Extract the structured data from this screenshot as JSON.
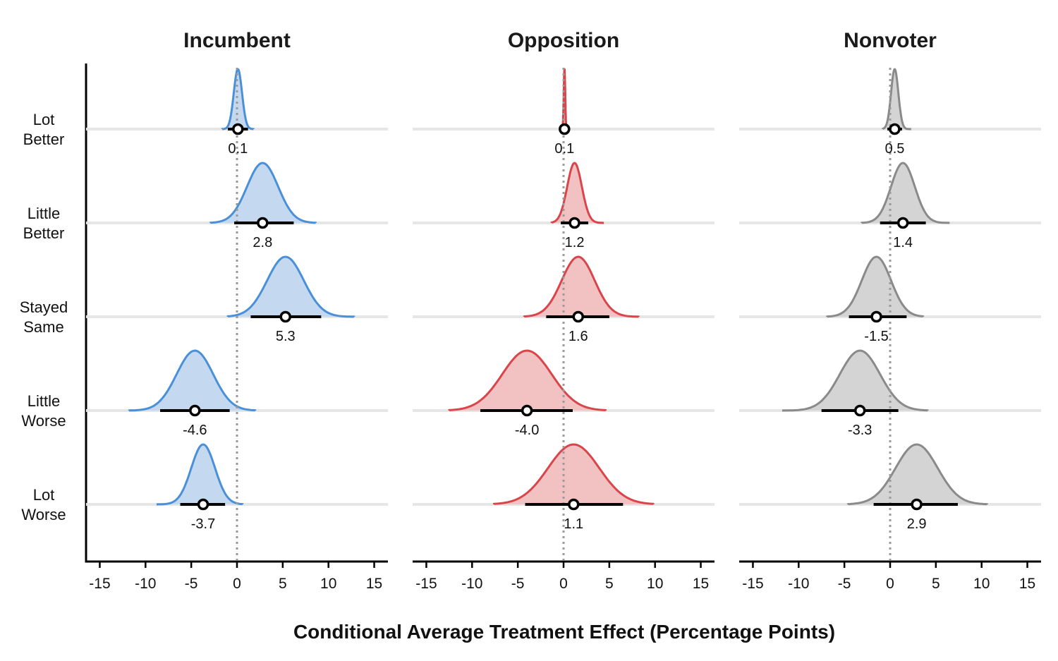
{
  "chart_data": {
    "type": "ridgeline",
    "xlabel": "Conditional Average Treatment Effect (Percentage Points)",
    "xlim": [
      -16.5,
      16.5
    ],
    "xticks": [
      -15,
      -10,
      -5,
      0,
      5,
      10,
      15
    ],
    "xtick_labels": [
      "-15",
      "-10",
      "-5",
      "0",
      "5",
      "10",
      "15"
    ],
    "reference_line": 0,
    "categories": [
      {
        "lines": [
          "Lot",
          "Better"
        ]
      },
      {
        "lines": [
          "Little",
          "Better"
        ]
      },
      {
        "lines": [
          "Stayed",
          "Same"
        ]
      },
      {
        "lines": [
          "Little",
          "Worse"
        ]
      },
      {
        "lines": [
          "Lot",
          "Worse"
        ]
      }
    ],
    "panels": [
      {
        "title": "Incumbent",
        "color": "#4a90d9",
        "fill": "#c4d9f0",
        "rows": [
          {
            "estimate": 0.1,
            "label": "0.1",
            "ci": [
              -1.0,
              1.2
            ],
            "sd": 0.45,
            "range": [
              -1.6,
              1.8
            ]
          },
          {
            "estimate": 2.8,
            "label": "2.8",
            "ci": [
              -0.3,
              6.2
            ],
            "sd": 1.7,
            "range": [
              -2.9,
              8.6
            ]
          },
          {
            "estimate": 5.3,
            "label": "5.3",
            "ci": [
              1.5,
              9.2
            ],
            "sd": 2.0,
            "range": [
              -1.0,
              12.8
            ]
          },
          {
            "estimate": -4.6,
            "label": "-4.6",
            "ci": [
              -8.4,
              -0.8
            ],
            "sd": 2.0,
            "range": [
              -11.8,
              2.0
            ]
          },
          {
            "estimate": -3.7,
            "label": "-3.7",
            "ci": [
              -6.2,
              -1.3
            ],
            "sd": 1.3,
            "range": [
              -8.8,
              0.6
            ]
          }
        ]
      },
      {
        "title": "Opposition",
        "color": "#d9454a",
        "fill": "#f2c2c3",
        "rows": [
          {
            "estimate": 0.1,
            "label": "0.1",
            "ci": [
              -0.1,
              0.2
            ],
            "sd": 0.08,
            "range": [
              -0.2,
              0.3
            ]
          },
          {
            "estimate": 1.2,
            "label": "1.2",
            "ci": [
              -0.3,
              2.7
            ],
            "sd": 0.8,
            "range": [
              -1.3,
              4.4
            ]
          },
          {
            "estimate": 1.6,
            "label": "1.6",
            "ci": [
              -1.9,
              5.0
            ],
            "sd": 1.8,
            "range": [
              -4.3,
              8.2
            ]
          },
          {
            "estimate": -4.0,
            "label": "-4.0",
            "ci": [
              -9.1,
              1.0
            ],
            "sd": 2.7,
            "range": [
              -12.5,
              4.6
            ]
          },
          {
            "estimate": 1.1,
            "label": "1.1",
            "ci": [
              -4.2,
              6.5
            ],
            "sd": 2.8,
            "range": [
              -7.6,
              9.8
            ]
          }
        ]
      },
      {
        "title": "Nonvoter",
        "color": "#8a8a8a",
        "fill": "#d4d4d4",
        "rows": [
          {
            "estimate": 0.5,
            "label": "0.5",
            "ci": [
              -0.3,
              1.3
            ],
            "sd": 0.4,
            "range": [
              -0.8,
              2.3
            ]
          },
          {
            "estimate": 1.4,
            "label": "1.4",
            "ci": [
              -1.1,
              3.9
            ],
            "sd": 1.3,
            "range": [
              -3.1,
              6.5
            ]
          },
          {
            "estimate": -1.5,
            "label": "-1.5",
            "ci": [
              -4.5,
              1.8
            ],
            "sd": 1.6,
            "range": [
              -6.9,
              3.6
            ]
          },
          {
            "estimate": -3.3,
            "label": "-3.3",
            "ci": [
              -7.5,
              0.9
            ],
            "sd": 2.2,
            "range": [
              -11.8,
              4.1
            ]
          },
          {
            "estimate": 2.9,
            "label": "2.9",
            "ci": [
              -1.8,
              7.4
            ],
            "sd": 2.3,
            "range": [
              -4.6,
              10.6
            ]
          }
        ]
      }
    ],
    "grid": false,
    "legend": "none"
  }
}
